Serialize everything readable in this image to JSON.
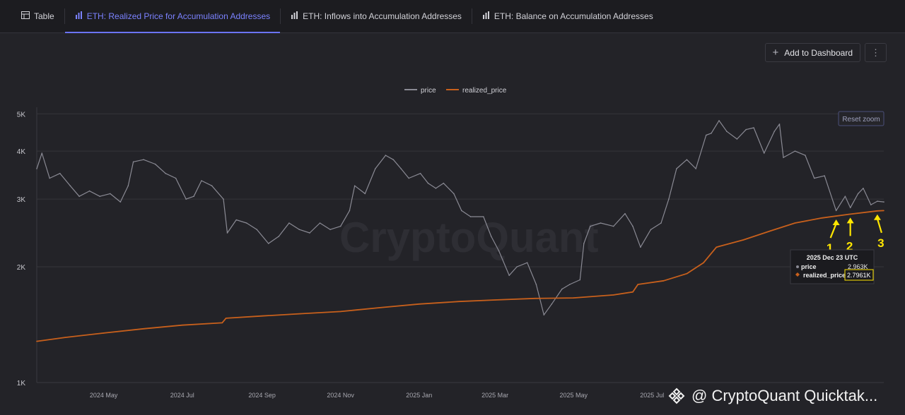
{
  "tabs": [
    {
      "label": "Table",
      "icon": "table-icon",
      "active": false
    },
    {
      "label": "ETH: Realized Price for Accumulation Addresses",
      "icon": "bar-chart-icon",
      "active": true
    },
    {
      "label": "ETH: Inflows into Accumulation Addresses",
      "icon": "bar-chart-icon",
      "active": false
    },
    {
      "label": "ETH: Balance on Accumulation Addresses",
      "icon": "bar-chart-icon",
      "active": false
    }
  ],
  "toolbar": {
    "add_to_dashboard": "Add to Dashboard",
    "add_icon": "plus-icon",
    "more_icon": "kebab-icon",
    "plus_glyph": "+",
    "more_glyph": "⋮"
  },
  "reset_zoom": "Reset zoom",
  "watermark": "CryptoQuant",
  "attribution": "@ CryptoQuant Quicktak...",
  "colors": {
    "price": "#8a8a94",
    "realized_price": "#c8601c",
    "accent": "#6b73ff",
    "annotation": "#ffe600",
    "background": "#232328"
  },
  "tooltip": {
    "date": "2025 Dec 23 UTC",
    "rows": [
      {
        "label": "price",
        "value": "2.963K"
      },
      {
        "label": "realized_price",
        "value": "2.7961K"
      }
    ]
  },
  "annotations": [
    "1",
    "2",
    "3"
  ],
  "chart_data": {
    "type": "line",
    "title": "",
    "xlabel": "",
    "ylabel": "",
    "log_scale": true,
    "ylim": [
      1000,
      5200
    ],
    "xlim": [
      "2024-03-10",
      "2025-12-28"
    ],
    "yticks": [
      {
        "v": 1000,
        "label": "1K"
      },
      {
        "v": 2000,
        "label": "2K"
      },
      {
        "v": 3000,
        "label": "3K"
      },
      {
        "v": 4000,
        "label": "4K"
      },
      {
        "v": 5000,
        "label": "5K"
      }
    ],
    "xticks": [
      {
        "date": "2024-05-01",
        "label": "2024 May"
      },
      {
        "date": "2024-07-01",
        "label": "2024 Jul"
      },
      {
        "date": "2024-09-01",
        "label": "2024 Sep"
      },
      {
        "date": "2024-11-01",
        "label": "2024 Nov"
      },
      {
        "date": "2025-01-01",
        "label": "2025 Jan"
      },
      {
        "date": "2025-03-01",
        "label": "2025 Mar"
      },
      {
        "date": "2025-05-01",
        "label": "2025 May"
      },
      {
        "date": "2025-07-01",
        "label": "2025 Jul"
      }
    ],
    "grid": true,
    "legend_position": "top-center",
    "series": [
      {
        "name": "price",
        "points": [
          [
            "2024-03-10",
            3600
          ],
          [
            "2024-03-14",
            3950
          ],
          [
            "2024-03-20",
            3400
          ],
          [
            "2024-03-28",
            3500
          ],
          [
            "2024-04-05",
            3250
          ],
          [
            "2024-04-12",
            3050
          ],
          [
            "2024-04-20",
            3150
          ],
          [
            "2024-04-28",
            3050
          ],
          [
            "2024-05-06",
            3100
          ],
          [
            "2024-05-14",
            2950
          ],
          [
            "2024-05-20",
            3250
          ],
          [
            "2024-05-24",
            3750
          ],
          [
            "2024-06-01",
            3800
          ],
          [
            "2024-06-10",
            3700
          ],
          [
            "2024-06-18",
            3500
          ],
          [
            "2024-06-26",
            3400
          ],
          [
            "2024-07-04",
            3000
          ],
          [
            "2024-07-10",
            3050
          ],
          [
            "2024-07-16",
            3350
          ],
          [
            "2024-07-24",
            3250
          ],
          [
            "2024-08-02",
            3000
          ],
          [
            "2024-08-05",
            2450
          ],
          [
            "2024-08-12",
            2650
          ],
          [
            "2024-08-20",
            2600
          ],
          [
            "2024-08-28",
            2500
          ],
          [
            "2024-09-06",
            2300
          ],
          [
            "2024-09-14",
            2400
          ],
          [
            "2024-09-22",
            2600
          ],
          [
            "2024-09-30",
            2500
          ],
          [
            "2024-10-08",
            2450
          ],
          [
            "2024-10-16",
            2600
          ],
          [
            "2024-10-24",
            2500
          ],
          [
            "2024-11-01",
            2550
          ],
          [
            "2024-11-08",
            2800
          ],
          [
            "2024-11-12",
            3250
          ],
          [
            "2024-11-20",
            3100
          ],
          [
            "2024-11-28",
            3600
          ],
          [
            "2024-12-06",
            3900
          ],
          [
            "2024-12-12",
            3800
          ],
          [
            "2024-12-18",
            3600
          ],
          [
            "2024-12-24",
            3400
          ],
          [
            "2025-01-02",
            3500
          ],
          [
            "2025-01-08",
            3300
          ],
          [
            "2025-01-14",
            3200
          ],
          [
            "2025-01-20",
            3300
          ],
          [
            "2025-01-28",
            3100
          ],
          [
            "2025-02-03",
            2800
          ],
          [
            "2025-02-10",
            2700
          ],
          [
            "2025-02-20",
            2700
          ],
          [
            "2025-02-26",
            2400
          ],
          [
            "2025-03-04",
            2200
          ],
          [
            "2025-03-12",
            1900
          ],
          [
            "2025-03-18",
            2000
          ],
          [
            "2025-03-26",
            2050
          ],
          [
            "2025-04-02",
            1800
          ],
          [
            "2025-04-08",
            1500
          ],
          [
            "2025-04-14",
            1600
          ],
          [
            "2025-04-22",
            1750
          ],
          [
            "2025-04-28",
            1800
          ],
          [
            "2025-05-06",
            1850
          ],
          [
            "2025-05-09",
            2300
          ],
          [
            "2025-05-14",
            2550
          ],
          [
            "2025-05-22",
            2600
          ],
          [
            "2025-06-01",
            2550
          ],
          [
            "2025-06-10",
            2750
          ],
          [
            "2025-06-16",
            2550
          ],
          [
            "2025-06-22",
            2250
          ],
          [
            "2025-06-30",
            2500
          ],
          [
            "2025-07-08",
            2600
          ],
          [
            "2025-07-14",
            3000
          ],
          [
            "2025-07-20",
            3600
          ],
          [
            "2025-07-28",
            3800
          ],
          [
            "2025-08-04",
            3600
          ],
          [
            "2025-08-12",
            4400
          ],
          [
            "2025-08-16",
            4450
          ],
          [
            "2025-08-22",
            4800
          ],
          [
            "2025-08-28",
            4500
          ],
          [
            "2025-09-05",
            4300
          ],
          [
            "2025-09-12",
            4550
          ],
          [
            "2025-09-18",
            4600
          ],
          [
            "2025-09-26",
            3950
          ],
          [
            "2025-10-04",
            4500
          ],
          [
            "2025-10-08",
            4700
          ],
          [
            "2025-10-11",
            3850
          ],
          [
            "2025-10-20",
            4000
          ],
          [
            "2025-10-28",
            3900
          ],
          [
            "2025-11-04",
            3400
          ],
          [
            "2025-11-12",
            3450
          ],
          [
            "2025-11-21",
            2800
          ],
          [
            "2025-11-28",
            3050
          ],
          [
            "2025-12-02",
            2850
          ],
          [
            "2025-12-08",
            3100
          ],
          [
            "2025-12-12",
            3200
          ],
          [
            "2025-12-18",
            2900
          ],
          [
            "2025-12-23",
            2963
          ],
          [
            "2025-12-28",
            2950
          ]
        ]
      },
      {
        "name": "realized_price",
        "points": [
          [
            "2024-03-10",
            1280
          ],
          [
            "2024-04-01",
            1310
          ],
          [
            "2024-05-01",
            1345
          ],
          [
            "2024-06-01",
            1380
          ],
          [
            "2024-07-01",
            1410
          ],
          [
            "2024-08-01",
            1430
          ],
          [
            "2024-08-04",
            1470
          ],
          [
            "2024-09-01",
            1490
          ],
          [
            "2024-10-01",
            1510
          ],
          [
            "2024-11-01",
            1530
          ],
          [
            "2024-12-01",
            1565
          ],
          [
            "2025-01-01",
            1600
          ],
          [
            "2025-02-01",
            1625
          ],
          [
            "2025-03-01",
            1640
          ],
          [
            "2025-04-01",
            1655
          ],
          [
            "2025-05-01",
            1660
          ],
          [
            "2025-06-01",
            1690
          ],
          [
            "2025-06-16",
            1720
          ],
          [
            "2025-06-20",
            1800
          ],
          [
            "2025-07-10",
            1840
          ],
          [
            "2025-07-28",
            1920
          ],
          [
            "2025-08-10",
            2050
          ],
          [
            "2025-08-20",
            2250
          ],
          [
            "2025-09-10",
            2350
          ],
          [
            "2025-10-01",
            2480
          ],
          [
            "2025-10-20",
            2600
          ],
          [
            "2025-11-10",
            2680
          ],
          [
            "2025-12-01",
            2740
          ],
          [
            "2025-12-23",
            2796
          ],
          [
            "2025-12-28",
            2800
          ]
        ]
      }
    ]
  }
}
